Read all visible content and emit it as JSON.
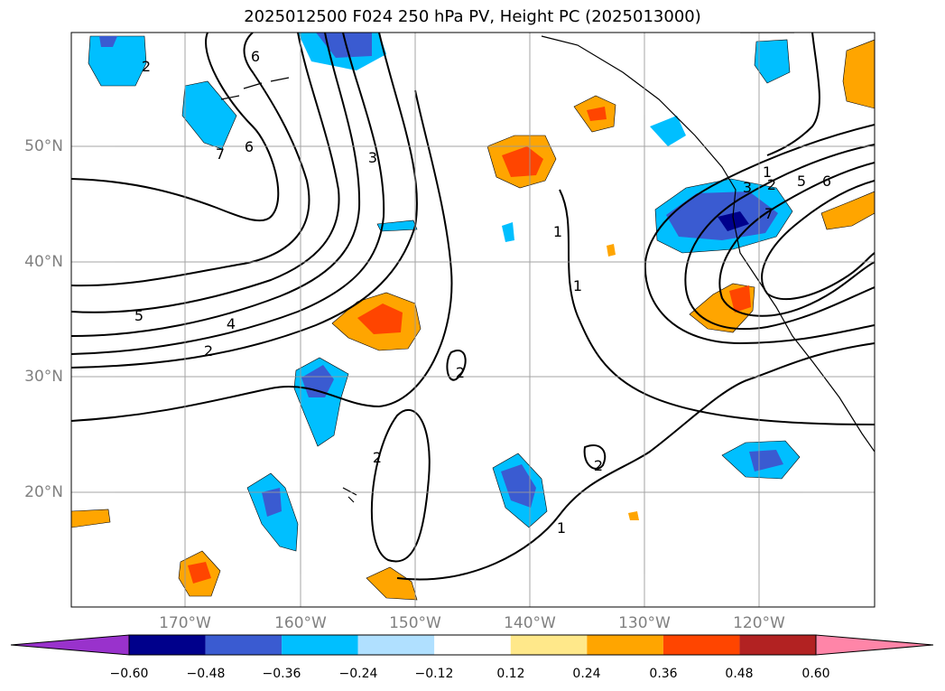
{
  "title": "2025012500 F024 250 hPa PV, Height PC (2025013000)",
  "map": {
    "lon_range": [
      -180,
      -110
    ],
    "lat_range": [
      10,
      60
    ],
    "lat_labels": [
      {
        "lat": 50,
        "text": "50°N"
      },
      {
        "lat": 40,
        "text": "40°N"
      },
      {
        "lat": 30,
        "text": "30°N"
      },
      {
        "lat": 20,
        "text": "20°N"
      }
    ],
    "lon_labels": [
      {
        "lon": -170,
        "text": "170°W"
      },
      {
        "lon": -160,
        "text": "160°W"
      },
      {
        "lon": -150,
        "text": "150°W"
      },
      {
        "lon": -140,
        "text": "140°W"
      },
      {
        "lon": -130,
        "text": "130°W"
      },
      {
        "lon": -120,
        "text": "120°W"
      }
    ],
    "gridlines": true,
    "contour_labels": [
      "6",
      "6",
      "7",
      "3",
      "5",
      "4",
      "2",
      "1",
      "1",
      "2",
      "2",
      "1",
      "2",
      "1",
      "3",
      "2",
      "5",
      "6",
      "7",
      "2"
    ]
  },
  "colorbar": {
    "colors": [
      "#9932cc",
      "#00008b",
      "#3a5bd1",
      "#00bfff",
      "#b0e0ff",
      "#ffffff",
      "#ffe88a",
      "#ffa500",
      "#ff4500",
      "#b22222",
      "#ff85a8"
    ],
    "ticks": [
      "−0.60",
      "−0.48",
      "−0.36",
      "−0.24",
      "−0.12",
      "0.12",
      "0.24",
      "0.36",
      "0.48",
      "0.60"
    ]
  }
}
